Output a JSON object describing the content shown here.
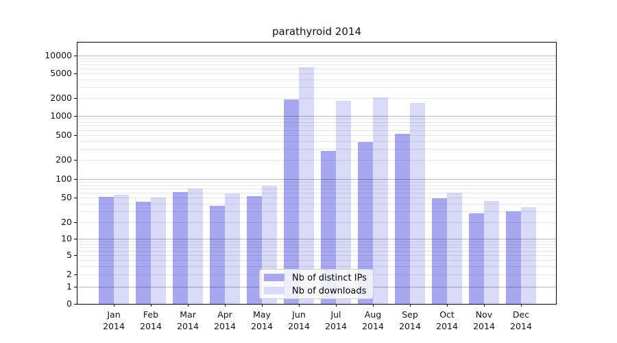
{
  "chart_data": {
    "type": "bar",
    "title": "parathyroid 2014",
    "categories": [
      "Jan",
      "Feb",
      "Mar",
      "Apr",
      "May",
      "Jun",
      "Jul",
      "Aug",
      "Sep",
      "Oct",
      "Nov",
      "Dec"
    ],
    "x_label_second_line": "2014",
    "series": [
      {
        "name": "Nb of distinct IPs",
        "color": "#a7a7ef",
        "values": [
          51,
          43,
          61,
          37,
          53,
          1900,
          280,
          390,
          520,
          49,
          28,
          30
        ]
      },
      {
        "name": "Nb of downloads",
        "color": "#d9d9f8",
        "values": [
          55,
          50,
          70,
          58,
          78,
          6300,
          1800,
          2050,
          1670,
          60,
          44,
          35
        ]
      }
    ],
    "y_ticks": [
      0,
      1,
      2,
      5,
      10,
      20,
      50,
      100,
      200,
      500,
      1000,
      2000,
      5000,
      10000
    ],
    "y_scale": "symlog",
    "ylim": [
      0,
      16000
    ],
    "grid": true,
    "legend_position": "lower-center-inside"
  }
}
